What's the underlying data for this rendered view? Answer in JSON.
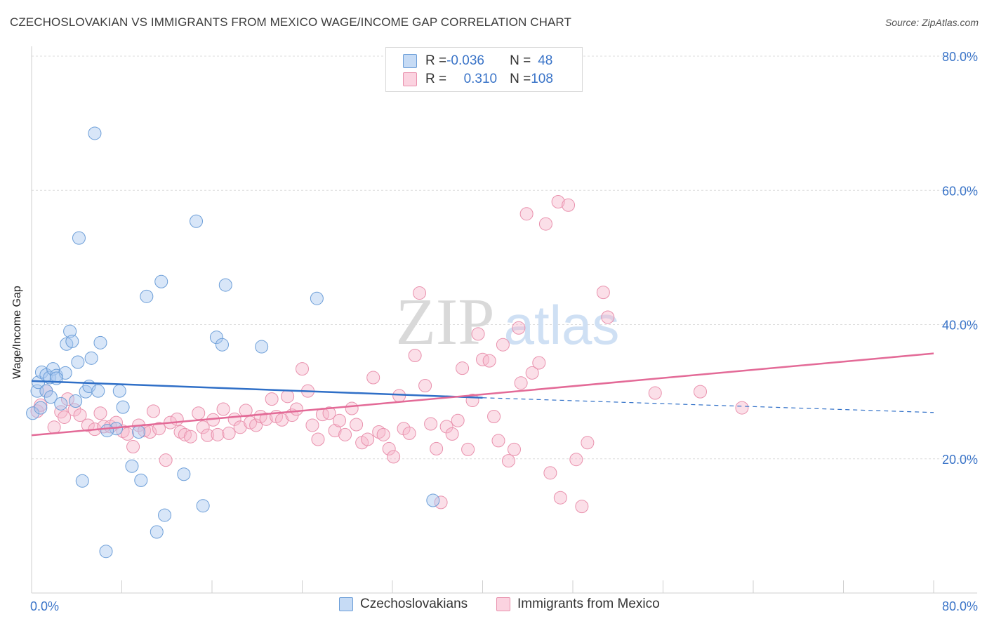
{
  "header": {
    "title": "CZECHOSLOVAKIAN VS IMMIGRANTS FROM MEXICO WAGE/INCOME GAP CORRELATION CHART",
    "source": "Source: ZipAtlas.com"
  },
  "watermark": {
    "left": "ZIP",
    "right": "atlas"
  },
  "legend_stats": {
    "rows": [
      {
        "r_label": "R = ",
        "r_value": "-0.036",
        "n_label": "N = ",
        "n_value": "48",
        "color": "#a9c8f0"
      },
      {
        "r_label": "R = ",
        "r_value": "0.310",
        "n_label": "N = ",
        "n_value": "108",
        "color": "#f7b9cc"
      }
    ]
  },
  "legend_bottom": {
    "items": [
      {
        "label": "Czechoslovakians",
        "color": "#a9c8f0"
      },
      {
        "label": "Immigrants from Mexico",
        "color": "#f7b9cc"
      }
    ]
  },
  "colors": {
    "blue_fill": "#a9c8f0",
    "blue_stroke": "#6c9ed8",
    "blue_line": "#2f6fc7",
    "pink_fill": "#f7b9cc",
    "pink_stroke": "#e991ad",
    "pink_line": "#e36a97",
    "tick_label": "#3a74c8"
  },
  "chart_data": {
    "type": "scatter",
    "title": "CZECHOSLOVAKIAN VS IMMIGRANTS FROM MEXICO WAGE/INCOME GAP CORRELATION CHART",
    "xlabel": "",
    "ylabel": "Wage/Income Gap",
    "xlim": [
      0,
      80
    ],
    "ylim": [
      0,
      80
    ],
    "x_tick_labels": [
      "0.0%",
      "80.0%"
    ],
    "y_tick_labels": [
      "20.0%",
      "40.0%",
      "60.0%",
      "80.0%"
    ],
    "y_ticks": [
      20,
      40,
      60,
      80
    ],
    "grid": "horizontal dashed",
    "legend_position": "top-center",
    "series": [
      {
        "name": "Czechoslovakians",
        "trend": {
          "x": [
            0,
            40
          ],
          "y": [
            31.6,
            29.1
          ],
          "dashed_extension_to": [
            80,
            26.9
          ]
        },
        "points": [
          [
            0.1,
            26.8
          ],
          [
            0.5,
            30.1
          ],
          [
            0.6,
            31.4
          ],
          [
            0.8,
            27.6
          ],
          [
            0.9,
            32.9
          ],
          [
            1.3,
            30.1
          ],
          [
            1.3,
            32.5
          ],
          [
            1.6,
            32.1
          ],
          [
            1.7,
            29.2
          ],
          [
            1.9,
            33.4
          ],
          [
            2.2,
            32.4
          ],
          [
            2.6,
            28.2
          ],
          [
            3.0,
            32.8
          ],
          [
            3.1,
            37.1
          ],
          [
            3.4,
            39.0
          ],
          [
            3.6,
            37.5
          ],
          [
            3.9,
            28.6
          ],
          [
            4.1,
            34.4
          ],
          [
            4.2,
            52.9
          ],
          [
            4.5,
            16.7
          ],
          [
            4.8,
            30.0
          ],
          [
            5.1,
            30.8
          ],
          [
            5.3,
            35.0
          ],
          [
            5.6,
            68.5
          ],
          [
            5.9,
            30.1
          ],
          [
            6.1,
            37.3
          ],
          [
            6.6,
            6.2
          ],
          [
            7.5,
            24.5
          ],
          [
            7.8,
            30.1
          ],
          [
            8.1,
            27.7
          ],
          [
            8.9,
            18.9
          ],
          [
            9.7,
            16.8
          ],
          [
            10.2,
            44.2
          ],
          [
            11.1,
            9.1
          ],
          [
            11.5,
            46.4
          ],
          [
            11.8,
            11.6
          ],
          [
            13.5,
            17.7
          ],
          [
            14.6,
            55.4
          ],
          [
            15.2,
            13.0
          ],
          [
            16.4,
            38.1
          ],
          [
            16.9,
            37.0
          ],
          [
            17.2,
            45.9
          ],
          [
            20.4,
            36.7
          ],
          [
            25.3,
            43.9
          ],
          [
            35.6,
            13.8
          ],
          [
            6.7,
            24.2
          ],
          [
            9.5,
            24.0
          ],
          [
            2.2,
            32.0
          ]
        ]
      },
      {
        "name": "Immigrants from Mexico",
        "trend": {
          "x": [
            0,
            80
          ],
          "y": [
            23.5,
            35.7
          ]
        },
        "points": [
          [
            0.5,
            27.1
          ],
          [
            0.8,
            28.0
          ],
          [
            1.3,
            30.1
          ],
          [
            2.0,
            24.7
          ],
          [
            2.6,
            27.0
          ],
          [
            2.9,
            26.2
          ],
          [
            3.2,
            28.9
          ],
          [
            3.8,
            27.3
          ],
          [
            4.3,
            26.5
          ],
          [
            5.0,
            25.0
          ],
          [
            5.6,
            24.4
          ],
          [
            6.1,
            26.8
          ],
          [
            6.4,
            24.8
          ],
          [
            7.0,
            24.8
          ],
          [
            7.5,
            25.4
          ],
          [
            8.1,
            24.1
          ],
          [
            8.5,
            23.7
          ],
          [
            9.0,
            21.8
          ],
          [
            9.5,
            25.0
          ],
          [
            10.0,
            24.2
          ],
          [
            10.5,
            24.0
          ],
          [
            10.8,
            27.1
          ],
          [
            11.3,
            24.5
          ],
          [
            11.9,
            19.8
          ],
          [
            12.3,
            25.4
          ],
          [
            12.9,
            25.9
          ],
          [
            13.2,
            24.0
          ],
          [
            13.6,
            23.6
          ],
          [
            14.1,
            23.3
          ],
          [
            14.8,
            26.8
          ],
          [
            15.2,
            24.7
          ],
          [
            15.6,
            23.5
          ],
          [
            16.1,
            25.8
          ],
          [
            16.5,
            23.6
          ],
          [
            17.0,
            27.4
          ],
          [
            17.5,
            23.8
          ],
          [
            18.0,
            25.9
          ],
          [
            18.5,
            24.7
          ],
          [
            19.0,
            27.2
          ],
          [
            19.4,
            25.4
          ],
          [
            19.9,
            25.0
          ],
          [
            20.3,
            26.3
          ],
          [
            20.8,
            25.9
          ],
          [
            21.3,
            28.9
          ],
          [
            21.7,
            26.3
          ],
          [
            22.2,
            25.8
          ],
          [
            22.7,
            29.3
          ],
          [
            23.1,
            26.5
          ],
          [
            23.5,
            27.4
          ],
          [
            24.0,
            33.4
          ],
          [
            24.5,
            30.1
          ],
          [
            24.9,
            25.0
          ],
          [
            25.4,
            22.9
          ],
          [
            25.8,
            26.6
          ],
          [
            26.4,
            26.8
          ],
          [
            26.9,
            24.2
          ],
          [
            27.3,
            25.7
          ],
          [
            27.8,
            23.6
          ],
          [
            28.4,
            27.5
          ],
          [
            28.8,
            25.1
          ],
          [
            29.3,
            22.4
          ],
          [
            29.8,
            22.9
          ],
          [
            30.3,
            32.1
          ],
          [
            30.8,
            24.0
          ],
          [
            31.2,
            23.6
          ],
          [
            31.7,
            21.5
          ],
          [
            32.1,
            20.3
          ],
          [
            32.6,
            29.4
          ],
          [
            33.0,
            24.5
          ],
          [
            33.5,
            23.8
          ],
          [
            34.0,
            35.4
          ],
          [
            34.4,
            44.7
          ],
          [
            34.9,
            30.9
          ],
          [
            35.4,
            25.2
          ],
          [
            35.9,
            21.5
          ],
          [
            36.3,
            13.5
          ],
          [
            36.8,
            24.8
          ],
          [
            37.3,
            23.7
          ],
          [
            37.8,
            25.7
          ],
          [
            38.2,
            33.5
          ],
          [
            38.7,
            21.4
          ],
          [
            39.1,
            28.7
          ],
          [
            39.6,
            38.6
          ],
          [
            40.0,
            34.8
          ],
          [
            40.6,
            34.6
          ],
          [
            41.0,
            26.3
          ],
          [
            41.4,
            22.7
          ],
          [
            41.8,
            37.0
          ],
          [
            42.3,
            19.7
          ],
          [
            42.8,
            21.4
          ],
          [
            43.2,
            39.5
          ],
          [
            43.4,
            31.3
          ],
          [
            43.9,
            56.5
          ],
          [
            44.4,
            32.8
          ],
          [
            45.0,
            34.3
          ],
          [
            45.6,
            55.0
          ],
          [
            46.0,
            17.9
          ],
          [
            46.7,
            58.3
          ],
          [
            46.9,
            14.2
          ],
          [
            47.6,
            57.8
          ],
          [
            48.3,
            19.9
          ],
          [
            48.8,
            12.9
          ],
          [
            49.3,
            22.4
          ],
          [
            50.7,
            44.8
          ],
          [
            51.1,
            41.1
          ],
          [
            55.3,
            29.8
          ],
          [
            59.3,
            30.0
          ],
          [
            63.0,
            27.6
          ]
        ]
      }
    ]
  }
}
